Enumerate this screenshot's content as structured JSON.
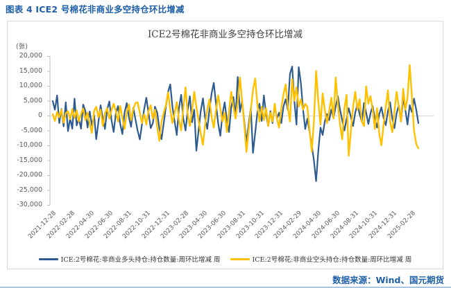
{
  "page": {
    "caption": "图表 4 ICE2 号棉花非商业多空持仓环比增减",
    "source": "数据来源：Wind、国元期货"
  },
  "chart_data": {
    "type": "line",
    "title": "ICE2号棉花非商业多空持仓环比增减",
    "unit_label": "(张)",
    "frequency": "weekly",
    "x_start": "2021-12-28",
    "x_end": "2025-03-25",
    "ylim": [
      -30000,
      20000
    ],
    "grid": "zero line only",
    "legend_position": "bottom",
    "y_ticks": [
      "20,000",
      "15,000",
      "10,000",
      "5,000",
      "0",
      "-5,000",
      "-10,000",
      "-15,000",
      "-20,000",
      "-25,000",
      "-30,000"
    ],
    "y_tick_values": [
      20000,
      15000,
      10000,
      5000,
      0,
      -5000,
      -10000,
      -15000,
      -20000,
      -25000,
      -30000
    ],
    "x_ticks": [
      "2021-12-28",
      "2022-02-28",
      "2022-04-30",
      "2022-06-30",
      "2022-08-31",
      "2022-10-31",
      "2022-12-31",
      "2023-02-28",
      "2023-04-30",
      "2023-06-30",
      "2023-08-31",
      "2023-10-31",
      "2023-12-31",
      "2024-02-29",
      "2024-04-30",
      "2024-06-30",
      "2024-08-31",
      "2024-10-31",
      "2024-12-31",
      "2025-02-28"
    ],
    "axis_color": "#bfbfbf",
    "zero_line_color": "#d9d9d9",
    "series": [
      {
        "name": "ICE:2号棉花:非商业多头持仓:持仓数量:周环比增减 周",
        "color": "#2e5b8f",
        "stroke_width": 2.2,
        "values": [
          4900,
          2000,
          6800,
          -2500,
          2200,
          -3600,
          4500,
          -5200,
          -900,
          -4400,
          5700,
          -3300,
          -900,
          -4400,
          3700,
          1500,
          -4000,
          1400,
          -3300,
          200,
          -7900,
          -2000,
          3500,
          -1000,
          -4500,
          2000,
          4800,
          -1500,
          -5500,
          800,
          3200,
          -2800,
          -6200,
          1000,
          4200,
          -500,
          -3800,
          2600,
          -1200,
          -5000,
          -8000,
          -3000,
          2200,
          6000,
          1000,
          -4200,
          -2500,
          3000,
          1000,
          -4500,
          -7900,
          -2500,
          3000,
          8000,
          10500,
          3000,
          -2000,
          -6500,
          2500,
          7000,
          -1000,
          -5000,
          1800,
          6500,
          -2200,
          2000,
          -11800,
          -5000,
          1500,
          5800,
          -800,
          -4500,
          2000,
          7500,
          11000,
          4000,
          -2500,
          -6800,
          500,
          4500,
          -1500,
          -5500,
          2800,
          6200,
          -500,
          13000,
          1200,
          5000,
          -2000,
          -9000,
          -3000,
          2500,
          -12500,
          -6000,
          1000,
          4000,
          -1800,
          6800,
          500,
          -3500,
          1500,
          -2500,
          3500,
          -1000,
          1000,
          -2500,
          3000,
          5500,
          2000,
          14000,
          16500,
          5000,
          -3000,
          16300,
          11000,
          2000,
          -4500,
          -1000,
          -5500,
          -10000,
          -15000,
          -22000,
          -12000,
          -4000,
          -6500,
          -2000,
          500,
          -1500,
          2000,
          -800,
          3000,
          6500,
          2000,
          -1500,
          -5000,
          -1000,
          2500,
          -500,
          -3500,
          1000,
          3800,
          500,
          -2000,
          4200,
          1000,
          -2800,
          800,
          3200,
          -1200,
          -4000,
          500,
          2800,
          -800,
          -3200,
          1500,
          4500,
          -1000,
          -4200,
          800,
          3500,
          -2000,
          5800,
          2000,
          -3000,
          3500,
          1200,
          5700,
          2000,
          -2500
        ]
      },
      {
        "name": "ICE:2号棉花:非商业空头持仓:持仓数量:周环比增减 周",
        "color": "#ffc000",
        "stroke_width": 2.4,
        "values": [
          500,
          -1800,
          1200,
          -600,
          2000,
          -2400,
          800,
          1500,
          -1200,
          2200,
          -800,
          1800,
          -2000,
          600,
          2400,
          -1500,
          1000,
          -2800,
          -5800,
          1500,
          3000,
          -500,
          2000,
          -3500,
          800,
          2500,
          -1000,
          1800,
          4000,
          1500,
          -2000,
          3200,
          -800,
          -4500,
          1200,
          3800,
          -1500,
          2200,
          4200,
          4500,
          1000,
          -2500,
          500,
          -3000,
          1500,
          3500,
          -1000,
          2000,
          -4000,
          -8500,
          -2000,
          1000,
          3500,
          7800,
          2000,
          -2500,
          1000,
          4500,
          -1500,
          -5000,
          2500,
          9500,
          500,
          -3500,
          1500,
          8000,
          3000,
          -1500,
          -6000,
          -9800,
          -3000,
          2000,
          5500,
          -500,
          -4000,
          1800,
          6800,
          2500,
          -2000,
          1000,
          -5500,
          1500,
          8000,
          3000,
          -1000,
          4500,
          12800,
          5000,
          -3000,
          -12200,
          -5000,
          2000,
          8500,
          12500,
          4000,
          -2000,
          3000,
          -1500,
          2500,
          -3500,
          1000,
          -2000,
          4000,
          -1000,
          -4000,
          2500,
          7000,
          10500,
          3000,
          -2000,
          12200,
          5000,
          9500,
          3000,
          5500,
          2000,
          4000,
          3000,
          -5000,
          -12100,
          -2000,
          15000,
          5000,
          -3000,
          7500,
          2000,
          -2500,
          1500,
          6000,
          -1000,
          12800,
          4000,
          -3000,
          -8000,
          2500,
          7000,
          -13500,
          -5000,
          3000,
          8000,
          2000,
          5500,
          -2000,
          -3500,
          9800,
          4000,
          6500,
          2000,
          -4500,
          2500,
          -6000,
          -10000,
          -3000,
          3000,
          8500,
          -2000,
          -5500,
          1500,
          8000,
          3000,
          -2000,
          9000,
          2000,
          6000,
          17000,
          6500,
          -5000,
          -9500,
          -11000
        ]
      }
    ]
  }
}
